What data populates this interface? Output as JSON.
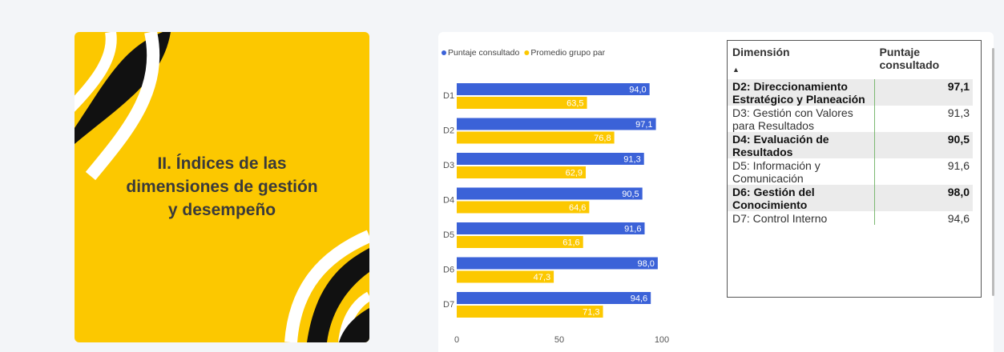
{
  "card": {
    "title": "II. Índices de las dimensiones de gestión y desempeño"
  },
  "chart_data": {
    "type": "hbar",
    "categories": [
      "D1",
      "D2",
      "D3",
      "D4",
      "D5",
      "D6",
      "D7"
    ],
    "series": [
      {
        "name": "Puntaje consultado",
        "color": "#3b62d8",
        "values": [
          94.0,
          97.1,
          91.3,
          90.5,
          91.6,
          98.0,
          94.6
        ],
        "value_labels": [
          "94,0",
          "97,1",
          "91,3",
          "90,5",
          "91,6",
          "98,0",
          "94,6"
        ]
      },
      {
        "name": "Promedio grupo par",
        "color": "#fcc800",
        "values": [
          63.5,
          76.8,
          62.9,
          64.6,
          61.6,
          47.3,
          71.3
        ],
        "value_labels": [
          "63,5",
          "76,8",
          "62,9",
          "64,6",
          "61,6",
          "47,3",
          "71,3"
        ]
      }
    ],
    "xlim": [
      0,
      100
    ],
    "xticks": [
      0,
      50,
      100
    ],
    "legend": "top-left"
  },
  "table": {
    "header": [
      "Dimensión",
      "Puntaje consultado"
    ],
    "rows": [
      [
        "D2: Direccionamiento Estratégico y Planeación",
        "97,1"
      ],
      [
        "D3: Gestión con Valores para Resultados",
        "91,3"
      ],
      [
        "D4: Evaluación de Resultados",
        "90,5"
      ],
      [
        "D5: Información y Comunicación",
        "91,6"
      ],
      [
        "D6: Gestión del Conocimiento",
        "98,0"
      ],
      [
        "D7: Control Interno",
        "94,6"
      ]
    ]
  }
}
